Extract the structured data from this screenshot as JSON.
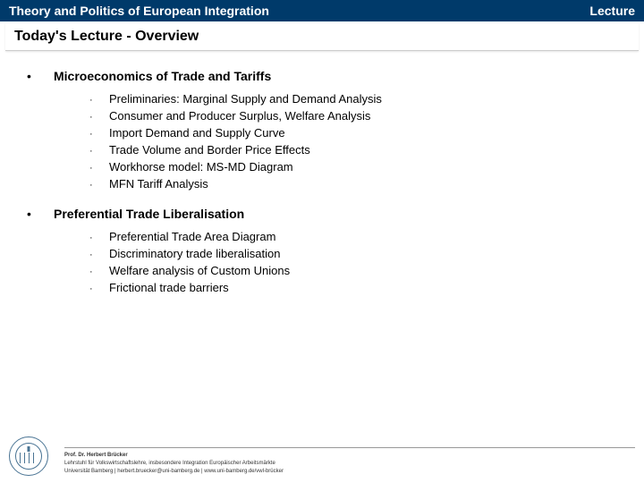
{
  "header": {
    "title_left": "Theory and Politics of European Integration",
    "title_right": "Lecture"
  },
  "subtitle": "Today's Lecture - Overview",
  "sections": [
    {
      "title": "Microeconomics of Trade and Tariffs",
      "items": [
        "Preliminaries: Marginal Supply and Demand Analysis",
        "Consumer and Producer Surplus, Welfare Analysis",
        "Import Demand and Supply Curve",
        "Trade Volume and Border Price Effects",
        "Workhorse model: MS-MD Diagram",
        "MFN Tariff Analysis"
      ]
    },
    {
      "title": "Preferential Trade Liberalisation",
      "items": [
        "Preferential Trade Area Diagram",
        "Discriminatory trade liberalisation",
        "Welfare analysis of Custom Unions",
        "Frictional trade barriers"
      ]
    }
  ],
  "footer": {
    "name": "Prof. Dr. Herbert Brücker",
    "dept": "Lehrstuhl für Volkswirtschaftslehre, insbesondere Integration Europäischer Arbeitsmärkte",
    "contact": "Universität Bamberg | herbert.bruecker@uni-bamberg.de | www.uni-bamberg.de/vwl-brücker"
  },
  "colors": {
    "header_bg": "#003a6a",
    "header_text": "#ffffff",
    "logo_color": "#4a7494"
  }
}
